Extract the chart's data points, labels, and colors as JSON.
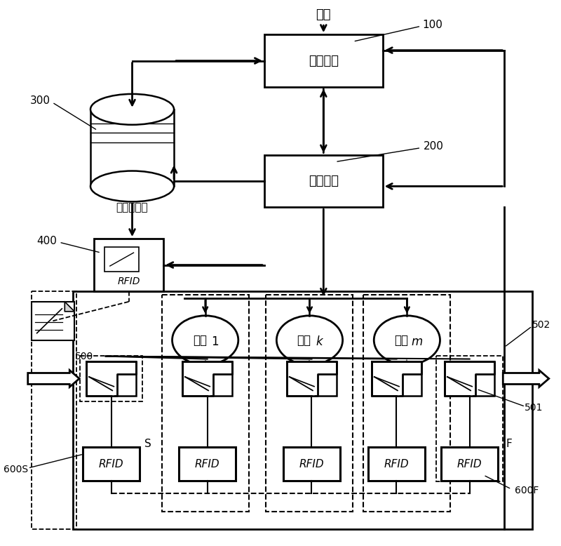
{
  "bg_color": "#ffffff",
  "fig_width": 8.0,
  "fig_height": 7.78,
  "labels": {
    "order": "订单",
    "plan_module": "计划模块",
    "dispatch_module": "调度模块",
    "system_db": "系统数据库",
    "rfid_main": "RFID",
    "machine1": "机器1",
    "machinek": "机器k",
    "machinem": "机器m",
    "l100": "100",
    "l200": "200",
    "l300": "300",
    "l400": "400",
    "l500": "500",
    "l501": "501",
    "l502": "502",
    "l600S": "600S",
    "l600F": "600F",
    "lS": "S",
    "lF": "F",
    "rfid": "RFID"
  }
}
